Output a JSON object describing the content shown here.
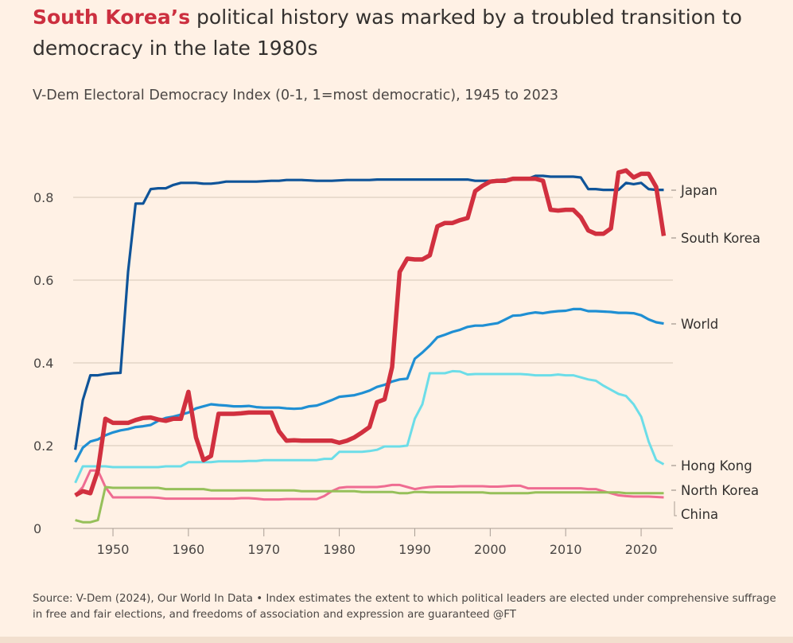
{
  "title": {
    "highlight": "South Korea’s",
    "rest": " political history was marked by a troubled transition to democracy in the late 1980s"
  },
  "subtitle": "V-Dem Electoral Democracy Index (0-1, 1=most democratic), 1945 to 2023",
  "source": "Source: V-Dem (2024), Our World In Data • Index estimates the extent to which political leaders are elected under comprehensive suffrage in free and fair elections, and freedoms of association and expression are guaranteed @FT",
  "colors": {
    "background": "#fff1e5",
    "title_highlight": "#cc2f3f",
    "grid": "#d6c6b8"
  },
  "chart_data": {
    "type": "line",
    "title": "",
    "xlabel": "",
    "ylabel": "",
    "x_start": 1945,
    "x_end": 2023,
    "xlim": [
      1945,
      2023
    ],
    "ylim": [
      0,
      0.9
    ],
    "x_ticks": [
      "1950",
      "1960",
      "1970",
      "1980",
      "1990",
      "2000",
      "2010",
      "2020"
    ],
    "y_ticks": [
      "0",
      "0.2",
      "0.4",
      "0.6",
      "0.8"
    ],
    "grid": true,
    "legend": "direct labels at right",
    "series": [
      {
        "name": "China",
        "color": "#ef6c92",
        "width": 3,
        "values": [
          0.08,
          0.1,
          0.14,
          0.14,
          0.1,
          0.075,
          0.075,
          0.075,
          0.075,
          0.075,
          0.075,
          0.074,
          0.072,
          0.072,
          0.072,
          0.072,
          0.072,
          0.072,
          0.072,
          0.072,
          0.072,
          0.072,
          0.073,
          0.073,
          0.072,
          0.07,
          0.07,
          0.07,
          0.071,
          0.071,
          0.071,
          0.071,
          0.071,
          0.078,
          0.09,
          0.098,
          0.1,
          0.1,
          0.1,
          0.1,
          0.1,
          0.102,
          0.105,
          0.105,
          0.1,
          0.095,
          0.098,
          0.1,
          0.101,
          0.101,
          0.101,
          0.102,
          0.102,
          0.102,
          0.102,
          0.101,
          0.101,
          0.102,
          0.103,
          0.103,
          0.097,
          0.097,
          0.097,
          0.097,
          0.097,
          0.097,
          0.097,
          0.097,
          0.095,
          0.095,
          0.09,
          0.085,
          0.08,
          0.078,
          0.077,
          0.077,
          0.077,
          0.076,
          0.075
        ]
      },
      {
        "name": "North Korea",
        "color": "#96c05a",
        "width": 3,
        "values": [
          0.02,
          0.015,
          0.015,
          0.02,
          0.1,
          0.098,
          0.098,
          0.098,
          0.098,
          0.098,
          0.098,
          0.098,
          0.095,
          0.095,
          0.095,
          0.095,
          0.095,
          0.095,
          0.092,
          0.092,
          0.092,
          0.092,
          0.092,
          0.092,
          0.092,
          0.092,
          0.092,
          0.092,
          0.092,
          0.092,
          0.09,
          0.09,
          0.09,
          0.09,
          0.09,
          0.09,
          0.09,
          0.09,
          0.088,
          0.088,
          0.088,
          0.088,
          0.088,
          0.085,
          0.085,
          0.088,
          0.088,
          0.087,
          0.087,
          0.087,
          0.087,
          0.087,
          0.087,
          0.087,
          0.087,
          0.085,
          0.085,
          0.085,
          0.085,
          0.085,
          0.085,
          0.087,
          0.087,
          0.087,
          0.087,
          0.087,
          0.087,
          0.087,
          0.087,
          0.087,
          0.087,
          0.087,
          0.087,
          0.085,
          0.085,
          0.085,
          0.085,
          0.085,
          0.085
        ]
      },
      {
        "name": "Hong Kong",
        "color": "#6cdde8",
        "width": 3,
        "values": [
          0.11,
          0.15,
          0.15,
          0.15,
          0.15,
          0.148,
          0.148,
          0.148,
          0.148,
          0.148,
          0.148,
          0.148,
          0.15,
          0.15,
          0.15,
          0.16,
          0.16,
          0.16,
          0.16,
          0.162,
          0.162,
          0.162,
          0.162,
          0.163,
          0.163,
          0.165,
          0.165,
          0.165,
          0.165,
          0.165,
          0.165,
          0.165,
          0.165,
          0.168,
          0.168,
          0.185,
          0.185,
          0.185,
          0.185,
          0.187,
          0.19,
          0.198,
          0.198,
          0.198,
          0.2,
          0.265,
          0.3,
          0.375,
          0.375,
          0.375,
          0.38,
          0.379,
          0.372,
          0.373,
          0.373,
          0.373,
          0.373,
          0.373,
          0.373,
          0.373,
          0.372,
          0.37,
          0.37,
          0.37,
          0.372,
          0.37,
          0.37,
          0.365,
          0.36,
          0.357,
          0.345,
          0.335,
          0.325,
          0.32,
          0.3,
          0.27,
          0.21,
          0.165,
          0.155
        ]
      },
      {
        "name": "World",
        "color": "#1f8fd3",
        "width": 3.2,
        "values": [
          0.16,
          0.195,
          0.21,
          0.215,
          0.225,
          0.232,
          0.237,
          0.24,
          0.245,
          0.247,
          0.25,
          0.26,
          0.267,
          0.27,
          0.275,
          0.28,
          0.29,
          0.295,
          0.3,
          0.298,
          0.297,
          0.295,
          0.295,
          0.296,
          0.293,
          0.292,
          0.292,
          0.292,
          0.29,
          0.289,
          0.29,
          0.295,
          0.297,
          0.303,
          0.31,
          0.318,
          0.32,
          0.322,
          0.327,
          0.333,
          0.342,
          0.347,
          0.355,
          0.36,
          0.362,
          0.41,
          0.425,
          0.442,
          0.462,
          0.468,
          0.475,
          0.48,
          0.487,
          0.49,
          0.49,
          0.493,
          0.496,
          0.505,
          0.514,
          0.515,
          0.519,
          0.522,
          0.52,
          0.523,
          0.525,
          0.526,
          0.53,
          0.53,
          0.525,
          0.525,
          0.524,
          0.523,
          0.521,
          0.521,
          0.52,
          0.515,
          0.505,
          0.498,
          0.495
        ]
      },
      {
        "name": "Japan",
        "color": "#0f5499",
        "width": 3.2,
        "values": [
          0.19,
          0.31,
          0.37,
          0.37,
          0.373,
          0.375,
          0.376,
          0.62,
          0.785,
          0.785,
          0.82,
          0.822,
          0.822,
          0.83,
          0.835,
          0.835,
          0.835,
          0.833,
          0.833,
          0.835,
          0.838,
          0.838,
          0.838,
          0.838,
          0.838,
          0.839,
          0.84,
          0.84,
          0.842,
          0.842,
          0.842,
          0.841,
          0.84,
          0.84,
          0.84,
          0.841,
          0.842,
          0.842,
          0.842,
          0.842,
          0.843,
          0.843,
          0.843,
          0.843,
          0.843,
          0.843,
          0.843,
          0.843,
          0.843,
          0.843,
          0.843,
          0.843,
          0.843,
          0.84,
          0.84,
          0.84,
          0.842,
          0.843,
          0.843,
          0.844,
          0.845,
          0.852,
          0.852,
          0.85,
          0.85,
          0.85,
          0.85,
          0.848,
          0.82,
          0.82,
          0.818,
          0.818,
          0.818,
          0.835,
          0.832,
          0.835,
          0.82,
          0.818,
          0.818
        ]
      },
      {
        "name": "South Korea",
        "color": "#d1303f",
        "width": 5.5,
        "values": [
          0.08,
          0.09,
          0.085,
          0.14,
          0.265,
          0.255,
          0.255,
          0.255,
          0.262,
          0.267,
          0.268,
          0.263,
          0.26,
          0.265,
          0.265,
          0.33,
          0.22,
          0.165,
          0.175,
          0.277,
          0.277,
          0.277,
          0.278,
          0.28,
          0.28,
          0.28,
          0.28,
          0.235,
          0.212,
          0.213,
          0.212,
          0.212,
          0.212,
          0.212,
          0.212,
          0.207,
          0.212,
          0.22,
          0.232,
          0.245,
          0.305,
          0.312,
          0.39,
          0.62,
          0.652,
          0.65,
          0.65,
          0.66,
          0.73,
          0.738,
          0.738,
          0.745,
          0.75,
          0.815,
          0.828,
          0.838,
          0.84,
          0.84,
          0.845,
          0.845,
          0.845,
          0.845,
          0.84,
          0.77,
          0.768,
          0.77,
          0.77,
          0.752,
          0.72,
          0.712,
          0.712,
          0.725,
          0.86,
          0.865,
          0.848,
          0.857,
          0.857,
          0.825,
          0.707
        ]
      }
    ]
  }
}
